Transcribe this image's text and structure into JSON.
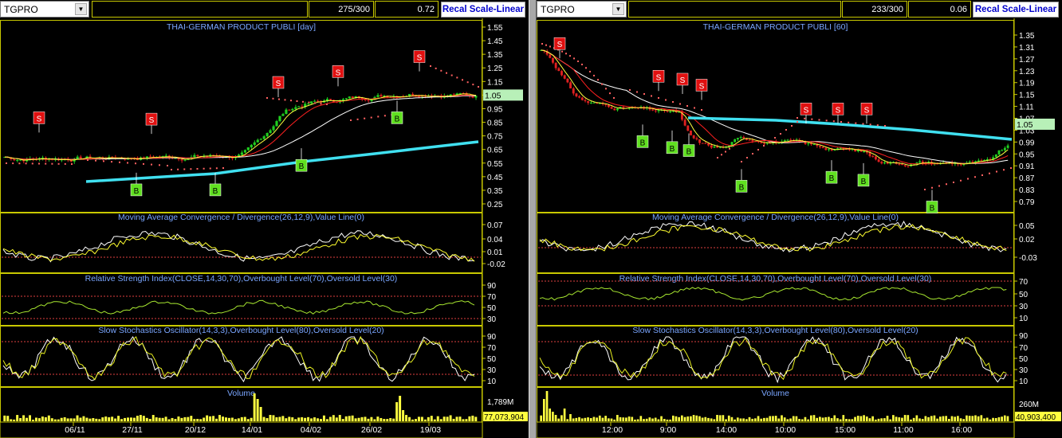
{
  "left": {
    "symbol": "TGPRO",
    "count": "275/300",
    "value": "0.72",
    "recal_label": "Recal Scale-Linear",
    "main_title": "THAI-GERMAN PRODUCT PUBLI [day]",
    "price_ticks": [
      "1.55",
      "1.45",
      "1.35",
      "1.25",
      "1.15",
      "1.05",
      "0.95",
      "0.85",
      "0.75",
      "0.65",
      "0.55",
      "0.45",
      "0.35",
      "0.25"
    ],
    "price_tick_values": [
      1.55,
      1.45,
      1.35,
      1.25,
      1.15,
      1.05,
      0.95,
      0.85,
      0.75,
      0.65,
      0.55,
      0.45,
      0.35,
      0.25
    ],
    "last_price": "1.05",
    "macd_title": "Moving Average Convergence / Divergence(26,12,9),Value Line(0)",
    "macd_ticks": [
      "0.07",
      "0.04",
      "0.01",
      "-0.02"
    ],
    "rsi_title": "Relative Strength Index(CLOSE,14,30,70),Overbought Level(70),Oversold Level(30)",
    "rsi_ticks": [
      "90",
      "70",
      "50",
      "30"
    ],
    "sto_title": "Slow Stochastics Oscillator(14,3,3),Overbought Level(80),Oversold Level(20)",
    "sto_ticks": [
      "90",
      "70",
      "50",
      "30",
      "10"
    ],
    "vol_title": "Volume",
    "vol_tick": "1,789M",
    "last_volume": "77,073,904",
    "dates": [
      "06/11",
      "27/11",
      "20/12",
      "14/01",
      "04/02",
      "26/02",
      "19/03"
    ],
    "sell_signals": [
      [
        49,
        0.88
      ],
      [
        190,
        0.87
      ],
      [
        349,
        1.14
      ],
      [
        424,
        1.22
      ],
      [
        526,
        1.33
      ]
    ],
    "buy_signals": [
      [
        171,
        0.35
      ],
      [
        270,
        0.35
      ],
      [
        378,
        0.53
      ],
      [
        498,
        0.88
      ]
    ]
  },
  "right": {
    "symbol": "TGPRO",
    "count": "233/300",
    "value": "0.06",
    "recal_label": "Recal Scale-Linear",
    "main_title": "THAI-GERMAN PRODUCT PUBLI [60]",
    "price_ticks": [
      "1.35",
      "1.31",
      "1.27",
      "1.23",
      "1.19",
      "1.15",
      "1.11",
      "1.07",
      "1.03",
      "0.99",
      "0.95",
      "0.91",
      "0.87",
      "0.83",
      "0.79"
    ],
    "price_tick_values": [
      1.35,
      1.31,
      1.27,
      1.23,
      1.19,
      1.15,
      1.11,
      1.07,
      1.03,
      0.99,
      0.95,
      0.91,
      0.87,
      0.83,
      0.79
    ],
    "last_price": "1.05",
    "macd_title": "Moving Average Convergence / Divergence(26,12,9),Value Line(0)",
    "macd_ticks": [
      "0.05",
      "0.02",
      "-0.03"
    ],
    "rsi_title": "Relative Strength Index(CLOSE,14,30,70),Overbought Level(70),Oversold Level(30)",
    "rsi_ticks": [
      "70",
      "50",
      "30",
      "10"
    ],
    "sto_title": "Slow Stochastics Oscillator(14,3,3),Overbought Level(80),Oversold Level(20)",
    "sto_ticks": [
      "90",
      "70",
      "50",
      "30",
      "10"
    ],
    "vol_title": "Volume",
    "vol_tick": "260M",
    "last_volume": "40,903,400",
    "dates": [
      "12:00",
      "9:00",
      "14:00",
      "10:00",
      "15:00",
      "11:00",
      "16:00"
    ],
    "sell_signals": [
      [
        702,
        1.32
      ],
      [
        826,
        1.21
      ],
      [
        856,
        1.2
      ],
      [
        880,
        1.18
      ],
      [
        1011,
        1.1
      ],
      [
        1051,
        1.1
      ],
      [
        1087,
        1.1
      ]
    ],
    "buy_signals": [
      [
        806,
        0.99
      ],
      [
        843,
        0.97
      ],
      [
        864,
        0.96
      ],
      [
        930,
        0.84
      ],
      [
        1043,
        0.87
      ],
      [
        1083,
        0.86
      ],
      [
        1169,
        0.77
      ]
    ]
  },
  "colors": {
    "accent_yellow": "#c8c800",
    "cyan_line": "#40e0f0",
    "sell_red": "#e01010",
    "buy_green": "#60e020",
    "title_blue": "#7aa6ff",
    "price_tag_bg": "#b8f0b8"
  }
}
